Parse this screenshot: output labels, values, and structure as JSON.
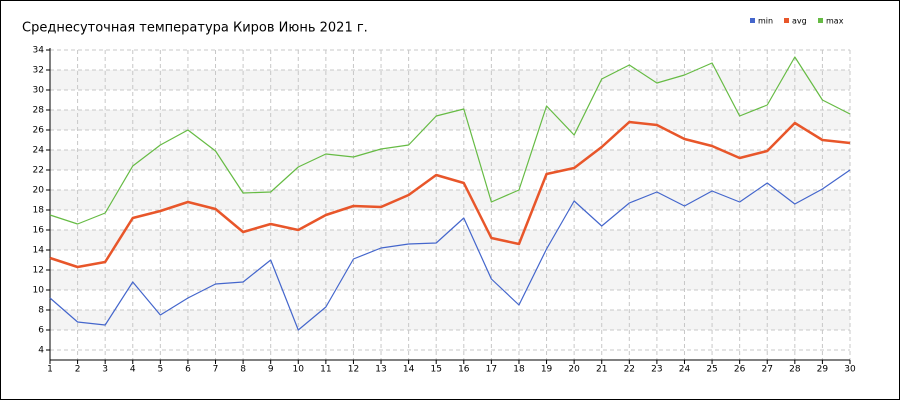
{
  "chart_data": {
    "type": "line",
    "title": "Среднесуточная температура Киров  Июнь 2021 г.",
    "x": [
      1,
      2,
      3,
      4,
      5,
      6,
      7,
      8,
      9,
      10,
      11,
      12,
      13,
      14,
      15,
      16,
      17,
      18,
      19,
      20,
      21,
      22,
      23,
      24,
      25,
      26,
      27,
      28,
      29,
      30
    ],
    "series": [
      {
        "name": "min",
        "color": "#4466cc",
        "values": [
          9.2,
          6.8,
          6.5,
          10.8,
          7.5,
          9.2,
          10.6,
          10.8,
          13.0,
          6.0,
          8.3,
          13.1,
          14.2,
          14.6,
          14.7,
          17.2,
          11.1,
          8.5,
          14.1,
          18.9,
          16.4,
          18.7,
          19.8,
          18.4,
          19.9,
          18.8,
          20.7,
          18.6,
          20.1,
          22.0
        ]
      },
      {
        "name": "avg",
        "color": "#e8562a",
        "values": [
          13.2,
          12.3,
          12.8,
          17.2,
          17.9,
          18.8,
          18.1,
          15.8,
          16.6,
          16.0,
          17.5,
          18.4,
          18.3,
          19.5,
          21.5,
          20.7,
          15.2,
          14.6,
          21.6,
          22.2,
          24.3,
          26.8,
          26.5,
          25.1,
          24.4,
          23.2,
          23.9,
          26.7,
          25.0,
          24.7
        ]
      },
      {
        "name": "max",
        "color": "#66bb44",
        "values": [
          17.5,
          16.6,
          17.7,
          22.4,
          24.5,
          26.0,
          23.9,
          19.7,
          19.8,
          22.3,
          23.6,
          23.3,
          24.1,
          24.5,
          27.4,
          28.1,
          18.8,
          20.0,
          28.4,
          25.5,
          31.1,
          32.5,
          30.7,
          31.5,
          32.7,
          27.4,
          28.5,
          33.3,
          29.0,
          27.6
        ]
      }
    ],
    "xlim": [
      1,
      30
    ],
    "xticks": [
      1,
      2,
      3,
      4,
      5,
      6,
      7,
      8,
      9,
      10,
      11,
      12,
      13,
      14,
      15,
      16,
      17,
      18,
      19,
      20,
      21,
      22,
      23,
      24,
      25,
      26,
      27,
      28,
      29,
      30
    ],
    "ylim": [
      3,
      34
    ],
    "yticks": [
      4,
      6,
      8,
      10,
      12,
      14,
      16,
      18,
      20,
      22,
      24,
      26,
      28,
      30,
      32,
      34
    ],
    "grid": true
  }
}
